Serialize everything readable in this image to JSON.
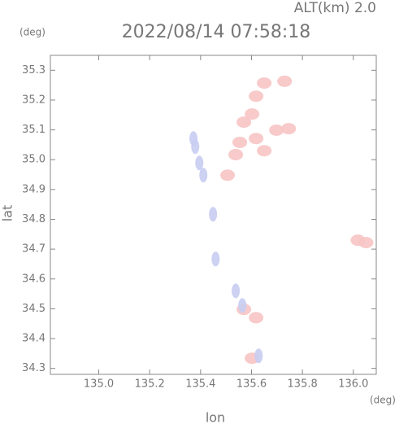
{
  "chart_data": {
    "type": "scatter",
    "title": "2022/08/14 07:58:18",
    "subtitle": "ALT(km) 2.0",
    "x_label": "lon",
    "y_label": "lat",
    "x_unit": "(deg)",
    "y_unit": "(deg)",
    "xlim": [
      134.81,
      136.09
    ],
    "ylim": [
      34.28,
      35.35
    ],
    "xticks": [
      {
        "value": 135.0,
        "label": "135.0"
      },
      {
        "value": 135.2,
        "label": "135.2"
      },
      {
        "value": 135.4,
        "label": "135.4"
      },
      {
        "value": 135.6,
        "label": "135.6"
      },
      {
        "value": 135.8,
        "label": "135.8"
      },
      {
        "value": 136.0,
        "label": "136.0"
      }
    ],
    "yticks": [
      {
        "value": 34.3,
        "label": "34.3"
      },
      34.4,
      34.5,
      34.6,
      34.7,
      34.8,
      34.9,
      {
        "value": 35.0,
        "label": "35.0"
      },
      35.1,
      35.2,
      35.3
    ],
    "series": [
      {
        "color": "#f7c4c4",
        "x": [
          135.57,
          135.618,
          135.554,
          135.65,
          135.698,
          135.746,
          135.602,
          135.538,
          135.618,
          135.65,
          135.73,
          135.506,
          136.018,
          136.05,
          135.57,
          135.618,
          135.602
        ],
        "y": [
          35.126,
          35.071,
          35.058,
          35.03,
          35.099,
          35.104,
          35.153,
          35.017,
          35.213,
          35.257,
          35.263,
          34.948,
          34.73,
          34.722,
          34.498,
          34.47,
          34.334
        ]
      },
      {
        "color": "#c8cdf2",
        "x": [
          135.379,
          135.395,
          135.411,
          135.372,
          135.449,
          135.538,
          135.564,
          135.628,
          135.459
        ],
        "y": [
          35.044,
          34.989,
          34.948,
          35.071,
          34.817,
          34.56,
          34.511,
          34.342,
          34.667
        ]
      }
    ]
  }
}
